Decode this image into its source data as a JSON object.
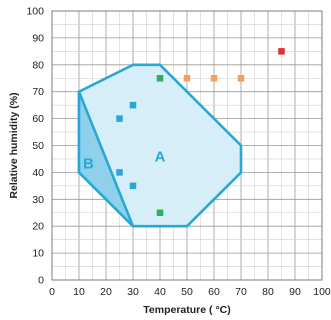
{
  "chart_data": {
    "type": "scatter",
    "xlabel": "Temperature ( °C)",
    "ylabel": "Relative humidity (%)",
    "xlim": [
      0,
      100
    ],
    "ylim": [
      0,
      100
    ],
    "x_ticks": [
      0,
      10,
      20,
      30,
      40,
      50,
      60,
      70,
      80,
      90,
      100
    ],
    "y_ticks": [
      0,
      10,
      20,
      30,
      40,
      50,
      60,
      70,
      80,
      90,
      100
    ],
    "grid": true,
    "regions": [
      {
        "label": "A",
        "polygon": [
          [
            10,
            70
          ],
          [
            30,
            80
          ],
          [
            40,
            80
          ],
          [
            70,
            50
          ],
          [
            70,
            40
          ],
          [
            50,
            20
          ],
          [
            30,
            20
          ],
          [
            10,
            40
          ]
        ],
        "fill": "#d6eef7",
        "stroke": "#29a8d8"
      },
      {
        "label": "B",
        "polygon": [
          [
            10,
            70
          ],
          [
            10,
            40
          ],
          [
            30,
            20
          ]
        ],
        "fill": "#8fd0ea",
        "stroke": "#29a8d8"
      }
    ],
    "series": [
      {
        "color": "#2aa5d8",
        "points": [
          [
            25,
            60
          ],
          [
            30,
            65
          ],
          [
            25,
            40
          ],
          [
            30,
            35
          ]
        ]
      },
      {
        "color": "#2fae5f",
        "points": [
          [
            40,
            75
          ],
          [
            40,
            25
          ]
        ]
      },
      {
        "color": "#f2a05a",
        "points": [
          [
            50,
            75
          ],
          [
            60,
            75
          ],
          [
            70,
            75
          ]
        ]
      },
      {
        "color": "#e0312e",
        "points": [
          [
            85,
            85
          ]
        ]
      }
    ]
  }
}
